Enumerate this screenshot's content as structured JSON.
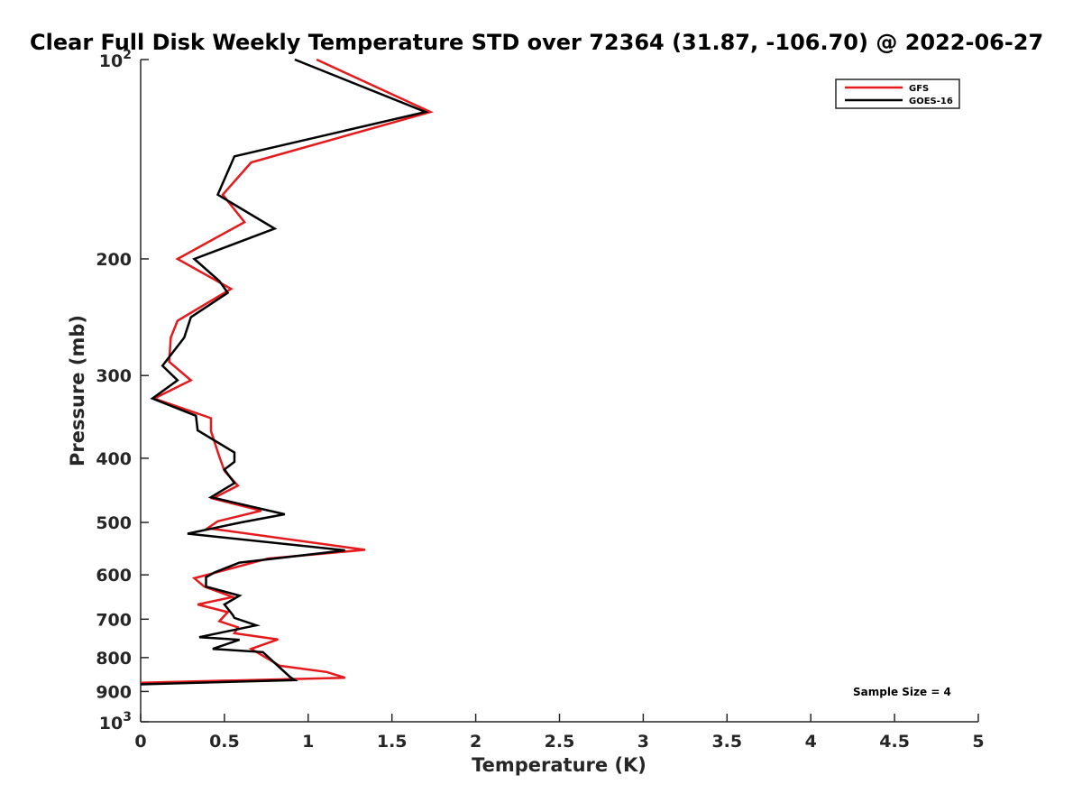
{
  "chart_data": {
    "type": "line",
    "title": "Clear Full Disk Weekly Temperature STD over 72364 (31.87, -106.70) @ 2022-06-27",
    "xlabel": "Temperature (K)",
    "ylabel": "Pressure (mb)",
    "xlim": [
      0,
      5
    ],
    "ylim": [
      100,
      1000
    ],
    "y_scale": "log",
    "y_reversed": true,
    "grid": false,
    "legend_position": "top-right",
    "x_ticks": [
      "0",
      "0.5",
      "1",
      "1.5",
      "2",
      "2.5",
      "3",
      "3.5",
      "4",
      "4.5",
      "5"
    ],
    "y_ticks": [
      {
        "value": 100,
        "base": "10",
        "exp": "2"
      },
      {
        "value": 200,
        "label": "200"
      },
      {
        "value": 300,
        "label": "300"
      },
      {
        "value": 400,
        "label": "400"
      },
      {
        "value": 500,
        "label": "500"
      },
      {
        "value": 600,
        "label": "600"
      },
      {
        "value": 700,
        "label": "700"
      },
      {
        "value": 800,
        "label": "800"
      },
      {
        "value": 900,
        "label": "900"
      },
      {
        "value": 1000,
        "base": "10",
        "exp": "3"
      }
    ],
    "annotation": "Sample Size = 4",
    "series": [
      {
        "name": "GFS",
        "color": "#e41a1c",
        "points": [
          [
            1.05,
            100
          ],
          [
            1.73,
            120
          ],
          [
            0.66,
            143
          ],
          [
            0.49,
            160
          ],
          [
            0.62,
            176
          ],
          [
            0.22,
            200
          ],
          [
            0.54,
            222
          ],
          [
            0.22,
            248
          ],
          [
            0.18,
            263
          ],
          [
            0.17,
            286
          ],
          [
            0.3,
            305
          ],
          [
            0.08,
            325
          ],
          [
            0.42,
            348
          ],
          [
            0.42,
            364
          ],
          [
            0.47,
            398
          ],
          [
            0.5,
            418
          ],
          [
            0.58,
            440
          ],
          [
            0.43,
            460
          ],
          [
            0.72,
            480
          ],
          [
            0.46,
            498
          ],
          [
            0.4,
            510
          ],
          [
            1.34,
            550
          ],
          [
            0.76,
            567
          ],
          [
            0.45,
            595
          ],
          [
            0.32,
            607
          ],
          [
            0.38,
            625
          ],
          [
            0.55,
            648
          ],
          [
            0.34,
            665
          ],
          [
            0.52,
            683
          ],
          [
            0.47,
            705
          ],
          [
            0.58,
            720
          ],
          [
            0.56,
            735
          ],
          [
            0.82,
            751
          ],
          [
            0.66,
            776
          ],
          [
            0.83,
            823
          ],
          [
            1.11,
            841
          ],
          [
            1.22,
            858
          ],
          [
            0.0,
            873
          ]
        ]
      },
      {
        "name": "GOES-16",
        "color": "#000000",
        "points": [
          [
            0.92,
            100
          ],
          [
            1.7,
            120
          ],
          [
            0.56,
            140
          ],
          [
            0.46,
            160
          ],
          [
            0.8,
            180
          ],
          [
            0.32,
            200
          ],
          [
            0.47,
            216
          ],
          [
            0.52,
            225
          ],
          [
            0.3,
            245
          ],
          [
            0.26,
            263
          ],
          [
            0.13,
            290
          ],
          [
            0.22,
            305
          ],
          [
            0.07,
            325
          ],
          [
            0.33,
            345
          ],
          [
            0.34,
            363
          ],
          [
            0.56,
            392
          ],
          [
            0.56,
            405
          ],
          [
            0.5,
            416
          ],
          [
            0.56,
            436
          ],
          [
            0.42,
            458
          ],
          [
            0.86,
            486
          ],
          [
            0.6,
            500
          ],
          [
            0.28,
            520
          ],
          [
            1.22,
            551
          ],
          [
            0.59,
            575
          ],
          [
            0.44,
            595
          ],
          [
            0.39,
            605
          ],
          [
            0.39,
            625
          ],
          [
            0.59,
            645
          ],
          [
            0.5,
            665
          ],
          [
            0.55,
            690
          ],
          [
            0.56,
            697
          ],
          [
            0.69,
            715
          ],
          [
            0.35,
            745
          ],
          [
            0.59,
            752
          ],
          [
            0.43,
            776
          ],
          [
            0.73,
            785
          ],
          [
            0.89,
            855
          ],
          [
            0.92,
            865
          ],
          [
            0.0,
            878
          ]
        ]
      }
    ]
  }
}
